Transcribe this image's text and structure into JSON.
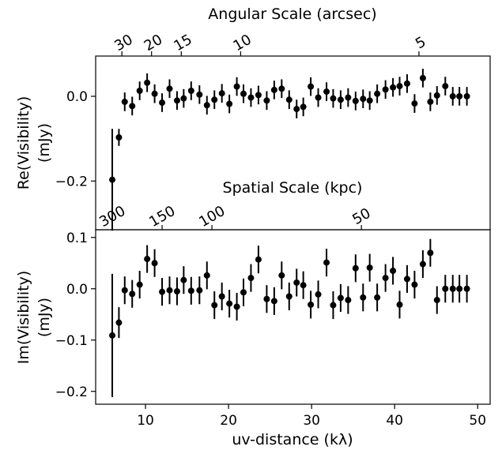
{
  "chart_data": [
    {
      "type": "scatter",
      "panel": "top",
      "ylabel": [
        "Re(Visibility)",
        "(mJy)"
      ],
      "top_axis_title": "Angular Scale (arcsec)",
      "top_axis_ticks": [
        {
          "value": 30,
          "x_uv": 7.16
        },
        {
          "value": 20,
          "x_uv": 10.73
        },
        {
          "value": 15,
          "x_uv": 14.31
        },
        {
          "value": 10,
          "x_uv": 21.46
        },
        {
          "value": 5,
          "x_uv": 42.93
        }
      ],
      "inner_axis_title": "Spatial Scale (kpc)",
      "inner_axis_ticks": [
        {
          "value": 300,
          "x_uv": 6.0
        },
        {
          "value": 150,
          "x_uv": 12.0
        },
        {
          "value": 100,
          "x_uv": 18.0
        },
        {
          "value": 50,
          "x_uv": 36.0
        }
      ],
      "xlim": [
        4.0,
        51.5
      ],
      "ylim": [
        -0.315,
        0.095
      ],
      "yticks": [
        0.0,
        -0.2
      ],
      "ytick_labels": [
        "0.0",
        "−0.2"
      ],
      "series": [
        {
          "x": [
            6.0,
            6.8,
            7.5,
            8.4,
            9.3,
            10.2,
            11.1,
            12.0,
            12.9,
            13.8,
            14.6,
            15.5,
            16.5,
            17.4,
            18.3,
            19.2,
            20.1,
            21.0,
            21.8,
            22.7,
            23.6,
            24.6,
            25.5,
            26.4,
            27.3,
            28.2,
            29.0,
            29.9,
            30.8,
            31.8,
            32.6,
            33.5,
            34.4,
            35.3,
            36.2,
            37.0,
            37.9,
            38.9,
            39.8,
            40.6,
            41.5,
            42.4,
            43.4,
            44.3,
            45.1,
            46.1,
            47.0,
            47.8,
            48.7
          ],
          "y": [
            -0.197,
            -0.097,
            -0.013,
            -0.023,
            0.013,
            0.032,
            0.006,
            -0.015,
            0.018,
            -0.01,
            -0.005,
            0.013,
            0.004,
            -0.021,
            -0.008,
            0.007,
            -0.018,
            0.023,
            0.006,
            -0.003,
            0.003,
            -0.01,
            0.015,
            0.018,
            -0.008,
            -0.03,
            -0.025,
            0.023,
            -0.003,
            0.011,
            -0.005,
            -0.008,
            -0.003,
            -0.011,
            -0.006,
            -0.01,
            0.006,
            0.016,
            0.021,
            0.024,
            0.03,
            -0.017,
            0.043,
            -0.013,
            0.002,
            0.024,
            0.0,
            0.0,
            0.0
          ],
          "err": [
            0.12,
            0.02,
            0.022,
            0.022,
            0.022,
            0.022,
            0.022,
            0.022,
            0.022,
            0.022,
            0.022,
            0.022,
            0.022,
            0.022,
            0.022,
            0.022,
            0.022,
            0.022,
            0.022,
            0.022,
            0.022,
            0.022,
            0.022,
            0.022,
            0.022,
            0.022,
            0.022,
            0.022,
            0.022,
            0.022,
            0.022,
            0.022,
            0.022,
            0.022,
            0.022,
            0.022,
            0.022,
            0.022,
            0.022,
            0.022,
            0.022,
            0.022,
            0.022,
            0.022,
            0.022,
            0.022,
            0.022,
            0.022,
            0.022
          ]
        }
      ]
    },
    {
      "type": "scatter",
      "panel": "bottom",
      "ylabel": [
        "Im(Visibility)",
        "(mJy)"
      ],
      "xlabel": "uv-distance (kλ)",
      "xlim": [
        4.0,
        51.5
      ],
      "xticks": [
        10,
        20,
        30,
        40,
        50
      ],
      "xtick_labels": [
        "10",
        "20",
        "30",
        "40",
        "50"
      ],
      "ylim": [
        -0.225,
        0.115
      ],
      "yticks": [
        0.1,
        0.0,
        -0.1,
        -0.2
      ],
      "ytick_labels": [
        "0.1",
        "0.0",
        "−0.1",
        "−0.2"
      ],
      "series": [
        {
          "x": [
            6.0,
            6.8,
            7.5,
            8.4,
            9.3,
            10.2,
            11.1,
            12.0,
            12.9,
            13.8,
            14.6,
            15.5,
            16.5,
            17.4,
            18.3,
            19.2,
            20.1,
            21.0,
            21.8,
            22.7,
            23.6,
            24.6,
            25.5,
            26.4,
            27.3,
            28.2,
            29.0,
            29.9,
            30.8,
            31.8,
            32.6,
            33.5,
            34.4,
            35.3,
            36.2,
            37.0,
            37.9,
            38.9,
            39.8,
            40.6,
            41.5,
            42.4,
            43.4,
            44.3,
            45.1,
            46.1,
            47.0,
            47.8,
            48.7
          ],
          "y": [
            -0.091,
            -0.066,
            -0.003,
            -0.01,
            0.008,
            0.058,
            0.05,
            -0.006,
            -0.003,
            -0.005,
            0.017,
            -0.004,
            -0.003,
            0.026,
            -0.032,
            -0.015,
            -0.029,
            -0.035,
            -0.007,
            0.021,
            0.057,
            -0.02,
            -0.024,
            0.026,
            -0.015,
            0.012,
            0.007,
            -0.031,
            -0.011,
            0.051,
            -0.032,
            -0.018,
            -0.022,
            0.04,
            -0.017,
            0.041,
            -0.017,
            0.021,
            0.035,
            -0.031,
            0.019,
            0.008,
            0.048,
            0.07,
            -0.022,
            0.0,
            0.0,
            0.0,
            0.0
          ],
          "err": [
            0.12,
            0.03,
            0.027,
            0.027,
            0.027,
            0.027,
            0.027,
            0.027,
            0.027,
            0.027,
            0.027,
            0.027,
            0.027,
            0.027,
            0.027,
            0.027,
            0.027,
            0.027,
            0.027,
            0.027,
            0.027,
            0.027,
            0.027,
            0.027,
            0.027,
            0.027,
            0.027,
            0.027,
            0.027,
            0.027,
            0.027,
            0.027,
            0.027,
            0.027,
            0.027,
            0.027,
            0.027,
            0.027,
            0.027,
            0.027,
            0.027,
            0.027,
            0.027,
            0.027,
            0.027,
            0.027,
            0.027,
            0.027,
            0.027
          ]
        }
      ]
    }
  ]
}
